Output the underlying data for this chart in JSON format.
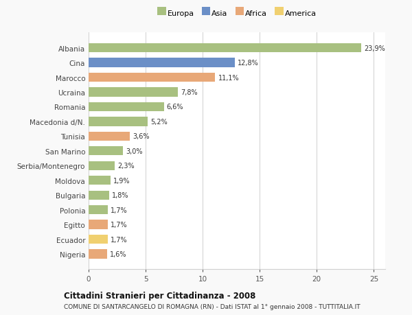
{
  "categories": [
    "Albania",
    "Cina",
    "Marocco",
    "Ucraina",
    "Romania",
    "Macedonia d/N.",
    "Tunisia",
    "San Marino",
    "Serbia/Montenegro",
    "Moldova",
    "Bulgaria",
    "Polonia",
    "Egitto",
    "Ecuador",
    "Nigeria"
  ],
  "values": [
    23.9,
    12.8,
    11.1,
    7.8,
    6.6,
    5.2,
    3.6,
    3.0,
    2.3,
    1.9,
    1.8,
    1.7,
    1.7,
    1.7,
    1.6
  ],
  "labels": [
    "23,9%",
    "12,8%",
    "11,1%",
    "7,8%",
    "6,6%",
    "5,2%",
    "3,6%",
    "3,0%",
    "2,3%",
    "1,9%",
    "1,8%",
    "1,7%",
    "1,7%",
    "1,7%",
    "1,6%"
  ],
  "colors": [
    "#a8c080",
    "#6b8fc7",
    "#e8a878",
    "#a8c080",
    "#a8c080",
    "#a8c080",
    "#e8a878",
    "#a8c080",
    "#a8c080",
    "#a8c080",
    "#a8c080",
    "#a8c080",
    "#e8a878",
    "#f0d070",
    "#e8a878"
  ],
  "legend": [
    {
      "label": "Europa",
      "color": "#a8c080"
    },
    {
      "label": "Asia",
      "color": "#6b8fc7"
    },
    {
      "label": "Africa",
      "color": "#e8a878"
    },
    {
      "label": "America",
      "color": "#f0d070"
    }
  ],
  "title": "Cittadini Stranieri per Cittadinanza - 2008",
  "subtitle": "COMUNE DI SANTARCANGELO DI ROMAGNA (RN) - Dati ISTAT al 1° gennaio 2008 - TUTTITALIA.IT",
  "xlim": [
    0,
    26
  ],
  "xticks": [
    0,
    5,
    10,
    15,
    20,
    25
  ],
  "background_color": "#f9f9f9",
  "bar_background": "#ffffff",
  "grid_color": "#d0d0d0"
}
